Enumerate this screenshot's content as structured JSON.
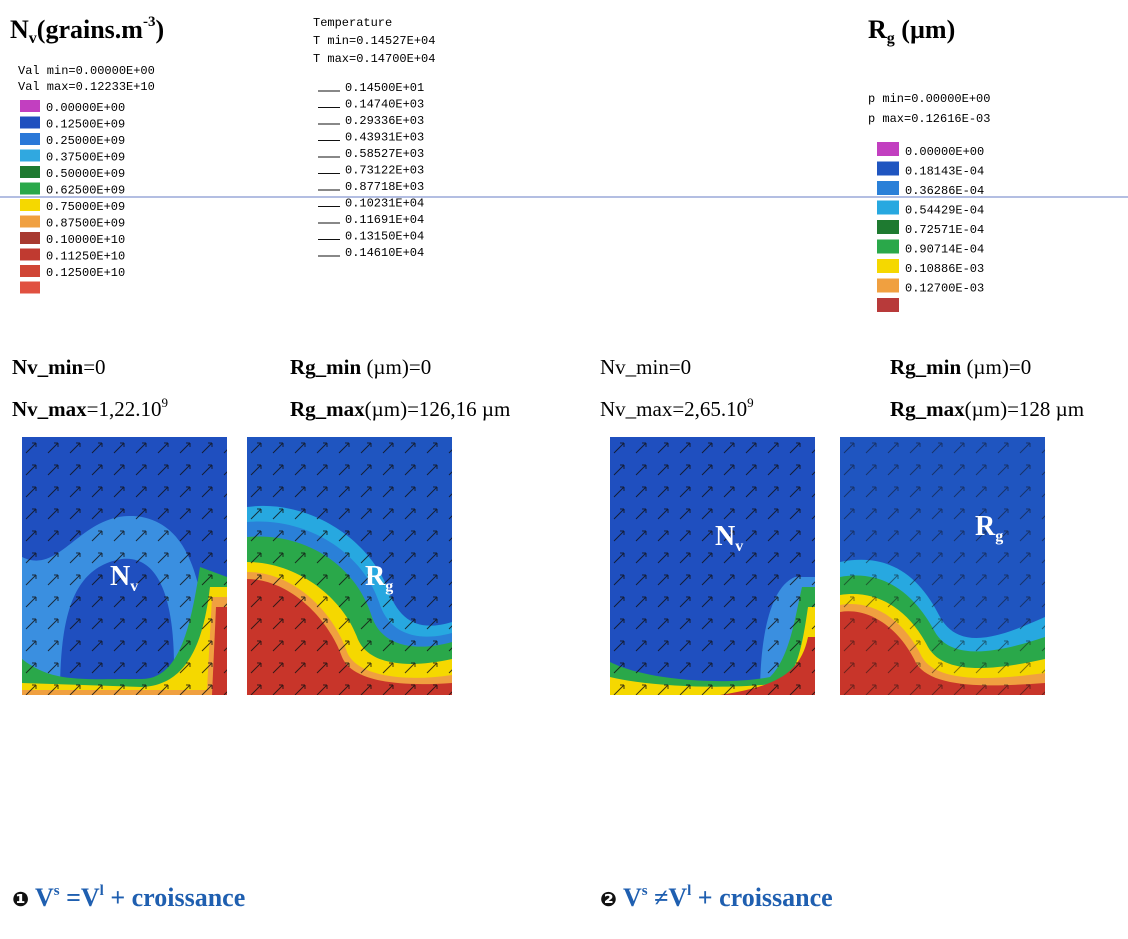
{
  "nv_legend": {
    "title": {
      "symbol": "N",
      "sub": "v",
      "unit": "(grains.m",
      "sup": "-3",
      "close": ")"
    },
    "val_min": "Val min=0.00000E+00",
    "val_max": "Val max=0.12233E+10",
    "labels": [
      "0.00000E+00",
      "0.12500E+09",
      "0.25000E+09",
      "0.37500E+09",
      "0.50000E+09",
      "0.62500E+09",
      "0.75000E+09",
      "0.87500E+09",
      "0.10000E+10",
      "0.11250E+10",
      "0.12500E+10"
    ],
    "colors": [
      "#c23fc0",
      "#1f4fbf",
      "#2a78d8",
      "#30a8e0",
      "#1e7a30",
      "#2aa84a",
      "#f5d800",
      "#f0a040",
      "#a83a30",
      "#c03a30",
      "#d04535",
      "#e05040"
    ]
  },
  "temperature_legend": {
    "title": "Temperature",
    "t_min": "T min=0.14527E+04",
    "t_max": "T max=0.14700E+04",
    "labels": [
      "0.14500E+01",
      "0.14740E+03",
      "0.29336E+03",
      "0.43931E+03",
      "0.58527E+03",
      "0.73122E+03",
      "0.87718E+03",
      "0.10231E+04",
      "0.11691E+04",
      "0.13150E+04",
      "0.14610E+04"
    ]
  },
  "rg_legend": {
    "title": {
      "symbol": "R",
      "sub": "g",
      "unit": " (µm)"
    },
    "p_min": "p min=0.00000E+00",
    "p_max": "p max=0.12616E-03",
    "labels": [
      "0.00000E+00",
      "0.18143E-04",
      "0.36286E-04",
      "0.54429E-04",
      "0.72571E-04",
      "0.90714E-04",
      "0.10886E-03",
      "0.12700E-03"
    ],
    "colors": [
      "#c23fc0",
      "#1f55c0",
      "#2a80d8",
      "#27a8e0",
      "#1e7a30",
      "#2aa84a",
      "#f5d800",
      "#f0a040",
      "#b83a3a"
    ]
  },
  "plot_labels": {
    "nv": {
      "base": "N",
      "sub": "v"
    },
    "rg": {
      "base": "R",
      "sub": "g"
    }
  },
  "panels": [
    {
      "nv_min": {
        "name": "Nv_min",
        "value": "=0"
      },
      "nv_max": {
        "name": "Nv_max",
        "value": "=1,22.10",
        "exp": "9"
      },
      "rg_min": {
        "name": "Rg_min",
        "value": " (µm)=0"
      },
      "rg_max": {
        "name": "Rg_max",
        "value": "(µm)=126,16 µm"
      },
      "caption": {
        "marker": "❶",
        "v": "V",
        "sup1": "s",
        "rel": " =V",
        "sup2": "l",
        "rest": " + croissance"
      }
    },
    {
      "nv_min": {
        "name": "Nv_min",
        "value": "=0"
      },
      "nv_max": {
        "name": "Nv_max",
        "value": "=2,65.10",
        "exp": "9"
      },
      "rg_min": {
        "name": "Rg_min",
        "value": " (µm)=0"
      },
      "rg_max": {
        "name": "Rg_max",
        "value": "(µm)=128 µm"
      },
      "caption": {
        "marker": "❷",
        "v": "V",
        "sup1": "s",
        "rel": " ≠V",
        "sup2": "l",
        "rest": " + croissance"
      }
    }
  ]
}
